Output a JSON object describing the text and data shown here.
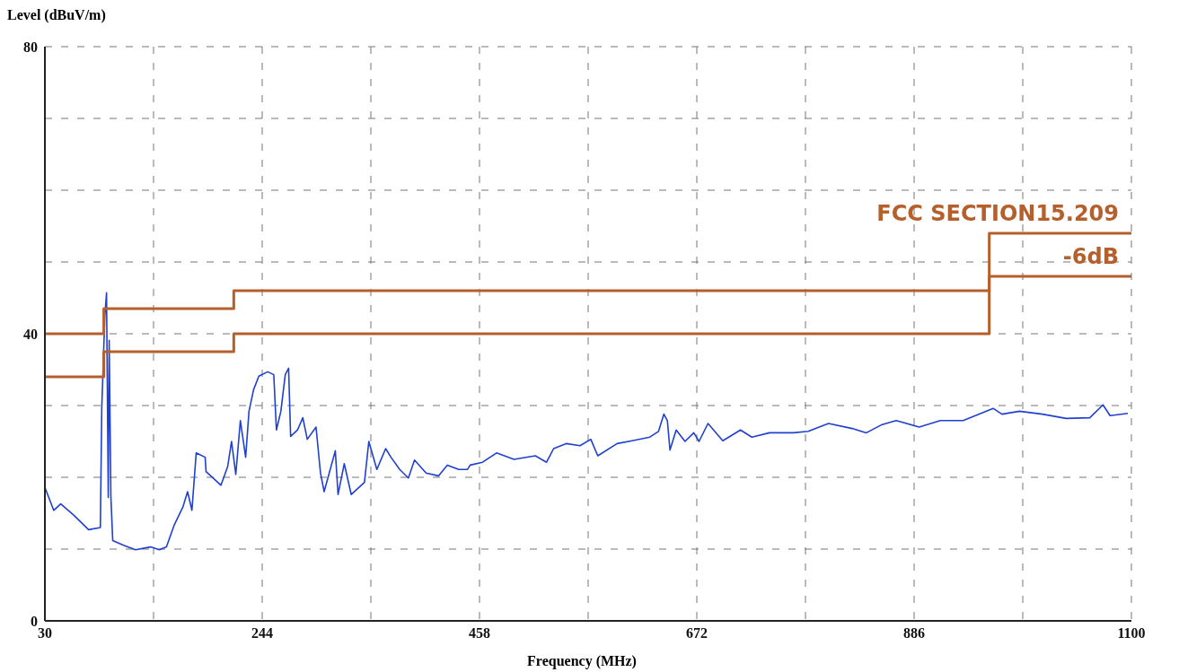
{
  "chart_data": {
    "type": "line",
    "xlabel": "Frequency (MHz)",
    "ylabel": "Level (dBuV/m)",
    "xlim": [
      30,
      1100
    ],
    "xticks": [
      30,
      {
        "value": 137,
        "label": null
      },
      244,
      {
        "value": 351,
        "label": null
      },
      458,
      {
        "value": 565,
        "label": null
      },
      672,
      {
        "value": 779,
        "label": null
      },
      886,
      {
        "value": 993,
        "label": null
      },
      1100
    ],
    "ylim": [
      0,
      80
    ],
    "yticks": [
      0,
      {
        "value": 10,
        "label": null
      },
      {
        "value": 20,
        "label": null
      },
      {
        "value": 30,
        "label": null
      },
      40,
      {
        "value": 50,
        "label": null
      },
      {
        "value": 60,
        "label": null
      },
      {
        "value": 70,
        "label": null
      },
      80
    ],
    "grid": true,
    "marker": "none",
    "series": [
      {
        "type": "line",
        "color": "#2040d0",
        "x": [
          30,
          38.7,
          45.6,
          58.6,
          73,
          84.6,
          86,
          89,
          90.7,
          92.4,
          93.3,
          95,
          96.8,
          108,
          119.3,
          134,
          142.7,
          149.7,
          157.5,
          166,
          170.5,
          174.8,
          179,
          187.8,
          188.7,
          203.4,
          210,
          213.8,
          218,
          222.5,
          227.7,
          231,
          235.5,
          240.7,
          249.4,
          255.4,
          258,
          262.4,
          266.7,
          270,
          272,
          278.8,
          284,
          288.4,
          297,
          301.4,
          305,
          316,
          318.7,
          324.8,
          331.7,
          344.7,
          349,
          356.9,
          365.6,
          370.8,
          379.4,
          388,
          394,
          405.4,
          417.6,
          426.3,
          437.5,
          446.2,
          448.8,
          461,
          474.8,
          492,
          513,
          524,
          531,
          543.3,
          557,
          567.6,
          574.5,
          593.6,
          608.3,
          625.7,
          634.3,
          639.6,
          643,
          645.6,
          651.7,
          660.4,
          669,
          674.2,
          683,
          697.6,
          715,
          726.2,
          743.6,
          767,
          781.7,
          801.7,
          825,
          839,
          853.7,
          868.4,
          891,
          911.8,
          934.3,
          963.8,
          972.5,
          989.8,
          1012.4,
          1035.8,
          1059,
          1072,
          1079,
          1096.5
        ],
        "values": [
          18.6,
          15.4,
          16.3,
          14.7,
          12.7,
          13.0,
          29.6,
          42.4,
          45.7,
          17.2,
          39.1,
          17.2,
          11.2,
          10.5,
          9.9,
          10.3,
          9.9,
          10.3,
          13.4,
          15.9,
          18.0,
          15.4,
          23.4,
          22.8,
          20.8,
          18.9,
          21.5,
          25.0,
          20.4,
          27.9,
          22.8,
          29.2,
          32.2,
          34.1,
          34.7,
          34.3,
          26.6,
          29.2,
          34.3,
          35.2,
          25.7,
          26.6,
          28.3,
          25.3,
          27.0,
          20.6,
          18.0,
          23.7,
          17.6,
          21.9,
          17.6,
          19.3,
          25.0,
          21.1,
          24.0,
          22.8,
          21.1,
          19.9,
          22.4,
          20.6,
          20.2,
          21.7,
          21.1,
          21.1,
          21.7,
          22.1,
          23.4,
          22.5,
          23.0,
          22.1,
          24.0,
          24.7,
          24.4,
          25.3,
          23.0,
          24.7,
          25.1,
          25.6,
          26.4,
          28.8,
          27.9,
          23.8,
          26.6,
          25.0,
          26.2,
          25.0,
          27.5,
          25.1,
          26.6,
          25.6,
          26.2,
          26.2,
          26.4,
          27.5,
          26.8,
          26.2,
          27.3,
          27.9,
          27.0,
          27.9,
          27.9,
          29.6,
          28.8,
          29.2,
          28.8,
          28.2,
          28.3,
          30.1,
          28.6,
          28.9
        ]
      },
      {
        "type": "step",
        "name": "FCC SECTION15.209",
        "color": "#b5602c",
        "x": [
          30,
          88,
          216,
          960,
          1100
        ],
        "values": [
          40,
          43.5,
          46,
          54,
          54
        ]
      },
      {
        "type": "step",
        "name": "-6dB",
        "color": "#b5602c",
        "x": [
          30,
          88,
          216,
          960,
          1100
        ],
        "values": [
          34,
          37.5,
          40,
          48,
          48
        ]
      }
    ]
  }
}
